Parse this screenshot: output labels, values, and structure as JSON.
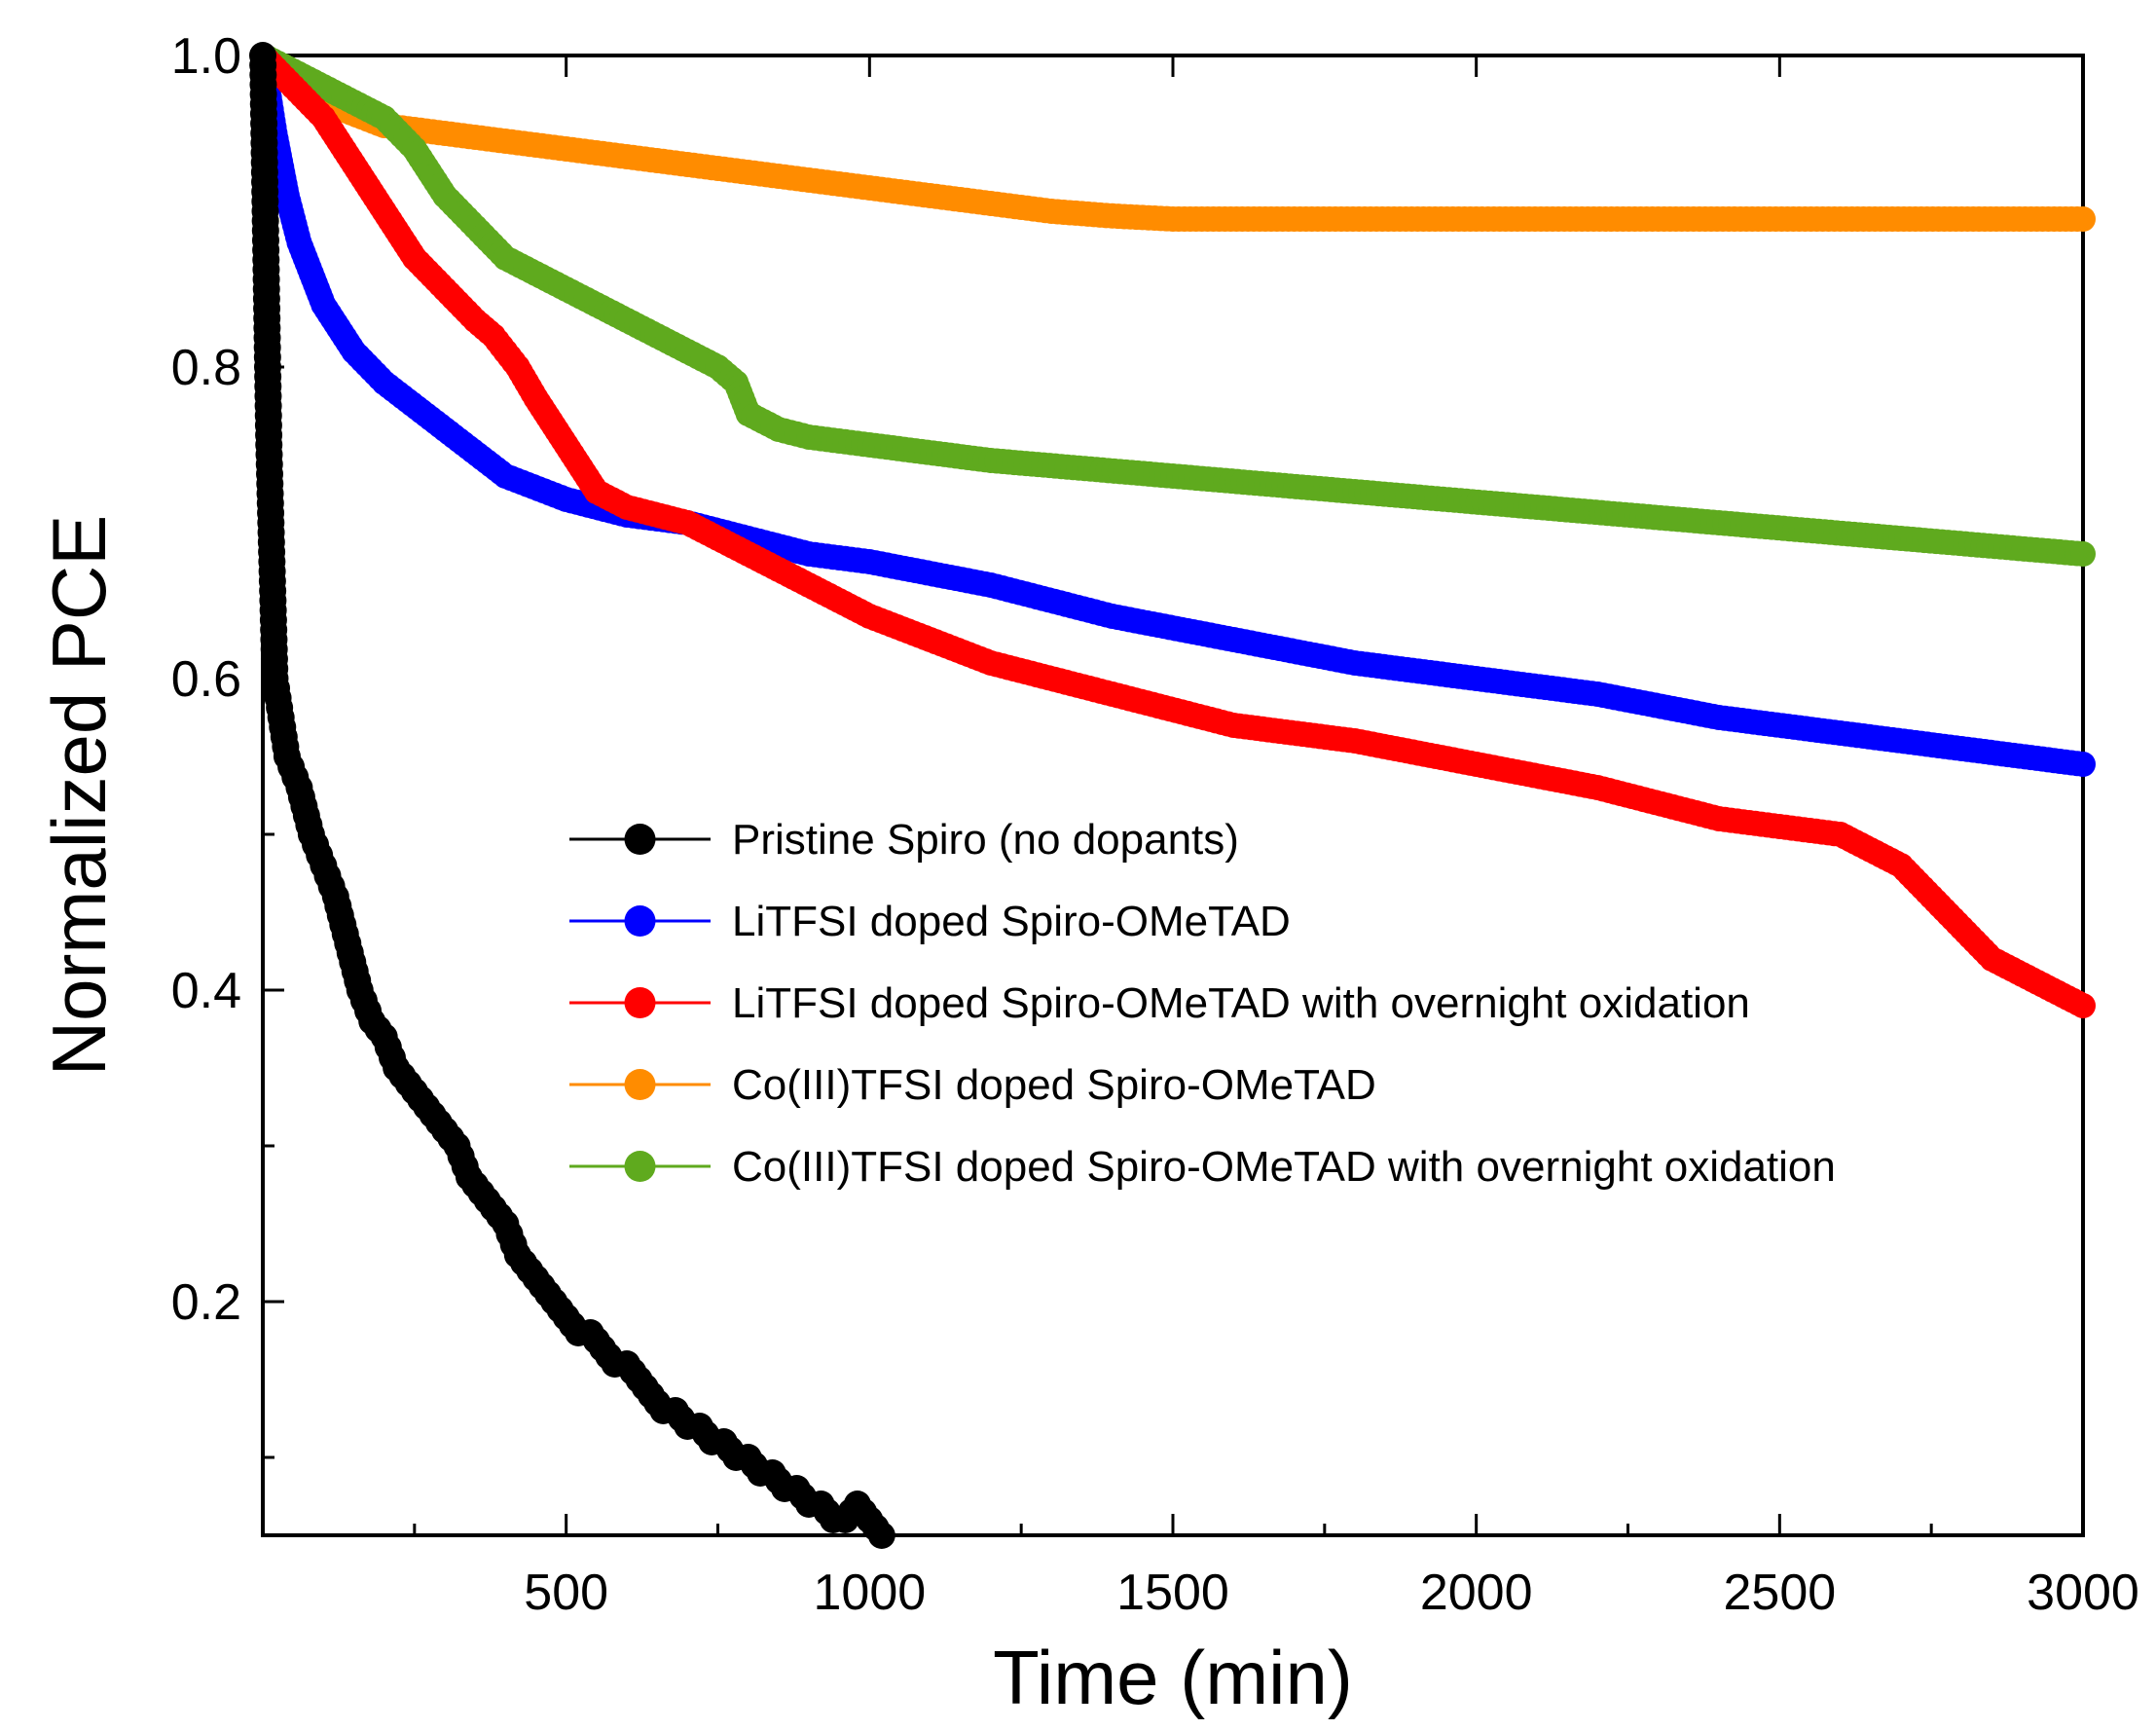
{
  "chart_data": {
    "type": "scatter",
    "title": "",
    "xlabel": "Time (min)",
    "ylabel": "Normalized PCE",
    "xlim": [
      0,
      3000
    ],
    "ylim": [
      0.05,
      1.0
    ],
    "xticks": [
      {
        "value": 500,
        "label": "500"
      },
      {
        "value": 1000,
        "label": "1000"
      },
      {
        "value": 1500,
        "label": "1500"
      },
      {
        "value": 2000,
        "label": "2000"
      },
      {
        "value": 2500,
        "label": "2500"
      },
      {
        "value": 3000,
        "label": "3000"
      }
    ],
    "yticks": [
      {
        "value": 0.2,
        "label": "0.2"
      },
      {
        "value": 0.4,
        "label": "0.4"
      },
      {
        "value": 0.6,
        "label": "0.6"
      },
      {
        "value": 0.8,
        "label": "0.8"
      },
      {
        "value": 1.0,
        "label": "1.0"
      }
    ],
    "legend_position": "center",
    "series": [
      {
        "name": "Pristine Spiro (no dopants)",
        "color": "#000000",
        "x": [
          0,
          10,
          20,
          40,
          60,
          80,
          100,
          120,
          140,
          160,
          180,
          200,
          220,
          240,
          260,
          280,
          300,
          320,
          340,
          360,
          380,
          400,
          420,
          440,
          460,
          480,
          500,
          520,
          540,
          560,
          580,
          600,
          620,
          640,
          660,
          680,
          700,
          720,
          740,
          760,
          780,
          800,
          820,
          840,
          860,
          880,
          900,
          920,
          940,
          960,
          980,
          1000,
          1020
        ],
        "y": [
          1.0,
          0.75,
          0.6,
          0.55,
          0.53,
          0.5,
          0.48,
          0.46,
          0.43,
          0.4,
          0.38,
          0.37,
          0.35,
          0.34,
          0.33,
          0.32,
          0.31,
          0.3,
          0.28,
          0.27,
          0.26,
          0.25,
          0.23,
          0.22,
          0.21,
          0.2,
          0.19,
          0.18,
          0.18,
          0.17,
          0.16,
          0.16,
          0.15,
          0.14,
          0.13,
          0.13,
          0.12,
          0.12,
          0.11,
          0.11,
          0.1,
          0.1,
          0.09,
          0.09,
          0.08,
          0.08,
          0.07,
          0.07,
          0.06,
          0.06,
          0.07,
          0.06,
          0.05
        ]
      },
      {
        "name": "LiTFSI doped Spiro-OMeTAD",
        "color": "#0000ff",
        "x": [
          0,
          20,
          40,
          60,
          80,
          100,
          150,
          200,
          300,
          400,
          500,
          600,
          700,
          800,
          900,
          1000,
          1200,
          1400,
          1600,
          1800,
          2000,
          2200,
          2400,
          2600,
          2800,
          3000
        ],
        "y": [
          1.0,
          0.95,
          0.91,
          0.88,
          0.86,
          0.84,
          0.81,
          0.79,
          0.76,
          0.73,
          0.715,
          0.705,
          0.7,
          0.69,
          0.68,
          0.675,
          0.66,
          0.64,
          0.625,
          0.61,
          0.6,
          0.59,
          0.575,
          0.565,
          0.555,
          0.545
        ]
      },
      {
        "name": "LiTFSI doped Spiro-OMeTAD with overnight oxidation",
        "color": "#ff0000",
        "x": [
          0,
          50,
          100,
          150,
          200,
          250,
          300,
          350,
          380,
          400,
          420,
          450,
          500,
          550,
          600,
          700,
          800,
          900,
          1000,
          1200,
          1400,
          1600,
          1800,
          2000,
          2200,
          2400,
          2500,
          2600,
          2700,
          2750,
          2800,
          2850,
          2900,
          3000
        ],
        "y": [
          1.0,
          0.98,
          0.96,
          0.93,
          0.9,
          0.87,
          0.85,
          0.83,
          0.82,
          0.81,
          0.8,
          0.78,
          0.75,
          0.72,
          0.71,
          0.7,
          0.68,
          0.66,
          0.64,
          0.61,
          0.59,
          0.57,
          0.56,
          0.545,
          0.53,
          0.51,
          0.505,
          0.5,
          0.48,
          0.46,
          0.44,
          0.42,
          0.41,
          0.39
        ]
      },
      {
        "name": "Co(III)TFSI doped Spiro-OMeTAD",
        "color": "#ff8c00",
        "x": [
          0,
          50,
          100,
          200,
          300,
          400,
          500,
          600,
          700,
          800,
          900,
          1000,
          1100,
          1200,
          1300,
          1400,
          1500,
          1700,
          2000,
          2300,
          2600,
          3000
        ],
        "y": [
          1.0,
          0.98,
          0.97,
          0.955,
          0.95,
          0.945,
          0.94,
          0.935,
          0.93,
          0.925,
          0.92,
          0.915,
          0.91,
          0.905,
          0.9,
          0.897,
          0.895,
          0.895,
          0.895,
          0.895,
          0.895,
          0.895
        ]
      },
      {
        "name": "Co(III)TFSI doped Spiro-OMeTAD with overnight oxidation",
        "color": "#5faa1e",
        "x": [
          0,
          50,
          100,
          150,
          200,
          250,
          300,
          350,
          400,
          500,
          600,
          700,
          750,
          780,
          800,
          850,
          900,
          1000,
          1200,
          1500,
          1800,
          2100,
          2400,
          2700,
          3000
        ],
        "y": [
          1.0,
          0.99,
          0.98,
          0.97,
          0.96,
          0.94,
          0.91,
          0.89,
          0.87,
          0.85,
          0.83,
          0.81,
          0.8,
          0.79,
          0.77,
          0.76,
          0.755,
          0.75,
          0.74,
          0.73,
          0.72,
          0.71,
          0.7,
          0.69,
          0.68
        ]
      }
    ]
  }
}
